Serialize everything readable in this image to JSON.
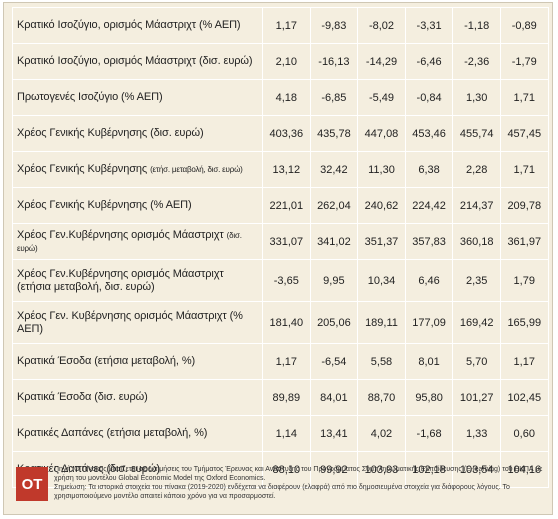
{
  "rows": [
    {
      "label": "Κρατικό Ισοζύγιο, ορισμός Μάαστριχτ (% ΑΕΠ)",
      "values": [
        "1,17",
        "-9,83",
        "-8,02",
        "-3,31",
        "-1,18",
        "-0,89"
      ]
    },
    {
      "label": "Κρατικό Ισοζύγιο, ορισμός Μάαστριχτ (δισ. ευρώ)",
      "values": [
        "2,10",
        "-16,13",
        "-14,29",
        "-6,46",
        "-2,36",
        "-1,79"
      ]
    },
    {
      "label": "Πρωτογενές Ισοζύγιο (% ΑΕΠ)",
      "values": [
        "4,18",
        "-6,85",
        "-5,49",
        "-0,84",
        "1,30",
        "1,71"
      ]
    },
    {
      "label": "Χρέος Γενικής Κυβέρνησης (δισ. ευρώ)",
      "values": [
        "403,36",
        "435,78",
        "447,08",
        "453,46",
        "455,74",
        "457,45"
      ]
    },
    {
      "label": "Χρέος Γενικής Κυβέρνησης",
      "label_small": "(ετήσ. μεταβολή, δισ. ευρώ)",
      "values": [
        "13,12",
        "32,42",
        "11,30",
        "6,38",
        "2,28",
        "1,71"
      ]
    },
    {
      "label": "Χρέος Γενικής Κυβέρνησης (% ΑΕΠ)",
      "values": [
        "221,01",
        "262,04",
        "240,62",
        "224,42",
        "214,37",
        "209,78"
      ]
    },
    {
      "label": "Χρέος Γεν.Κυβέρνησης ορισμός Μάαστριχτ",
      "label_small": "(δισ. ευρώ)",
      "values": [
        "331,07",
        "341,02",
        "351,37",
        "357,83",
        "360,18",
        "361,97"
      ]
    },
    {
      "label": "Χρέος Γεν.Κυβέρνησης ορισμός Μάαστριχτ (ετήσια μεταβολή, δισ. ευρώ)",
      "values": [
        "-3,65",
        "9,95",
        "10,34",
        "6,46",
        "2,35",
        "1,79"
      ],
      "tall": true
    },
    {
      "label": "Χρέος Γεν. Κυβέρνησης ορισμός Μάαστριχτ (% ΑΕΠ)",
      "values": [
        "181,40",
        "205,06",
        "189,11",
        "177,09",
        "169,42",
        "165,99"
      ],
      "tall": true
    },
    {
      "label": "Κρατικά Έσοδα (ετήσια μεταβολή, %)",
      "values": [
        "1,17",
        "-6,54",
        "5,58",
        "8,01",
        "5,70",
        "1,17"
      ]
    },
    {
      "label": "Κρατικά Έσοδα (δισ. ευρώ)",
      "values": [
        "89,89",
        "84,01",
        "88,70",
        "95,80",
        "101,27",
        "102,45"
      ]
    },
    {
      "label": "Κρατικές Δαπάνες (ετήσια μεταβολή, %)",
      "values": [
        "1,14",
        "13,41",
        "4,02",
        "-1,68",
        "1,33",
        "0,60"
      ]
    },
    {
      "label": "Κρατικές Δαπάνες (δισ. ευρώ)",
      "values": [
        "88,10",
        "99,92",
        "103,93",
        "102,18",
        "103,54",
        "104,16"
      ]
    }
  ],
  "footer": {
    "logo": "OT",
    "source": "Πηγή: Ο Πίνακας βασίζεται σε εκτιμήσεις του Τμήματος Έρευνας και Ανάπτυξης του Προγράμματος Συμπληρωματικής Εκπαίδευσης (E-learning) του ΕΚΠΑ με χρήση του μοντέλου Global Economic Model της Oxford Economics.",
    "note": "Σημείωση: Τα ιστορικά στοιχεία του πίνακα (2019-2020) ενδέχεται να διαφέρουν (ελαφρά) από πιο δημοσιευμένα στοιχεία για διάφορους λόγους. Το χρησιμοποιούμενο μοντέλο απαιτεί κάποιο χρόνο για να προσαρμοστεί."
  },
  "colors": {
    "background": "#f4eedf",
    "logo": "#c0392b",
    "grid": "#ffffff"
  }
}
